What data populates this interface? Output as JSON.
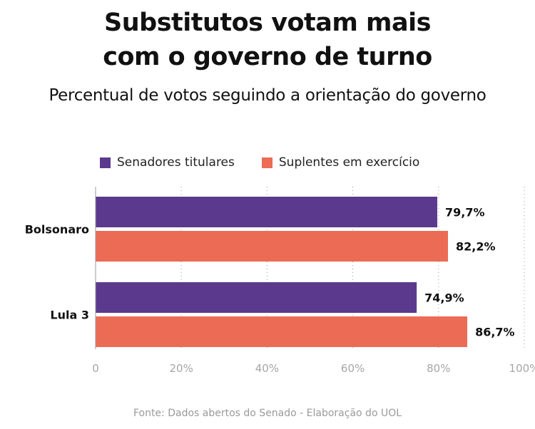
{
  "title_lines": [
    "Substitutos votam mais",
    "com o governo de turno"
  ],
  "subtitle": "Percentual de votos seguindo a orientação do governo",
  "source": "Fonte: Dados abertos do Senado - Elaboração do UOL",
  "chart_data": {
    "type": "bar",
    "orientation": "horizontal",
    "title": "Substitutos votam mais com o governo de turno",
    "subtitle": "Percentual de votos seguindo a orientação do governo",
    "categories": [
      "Bolsonaro",
      "Lula 3"
    ],
    "series": [
      {
        "name": "Senadores titulares",
        "color": "#5b3a8e",
        "values": [
          79.7,
          74.9
        ],
        "labels": [
          "79,7%",
          "74,9%"
        ]
      },
      {
        "name": "Suplentes em exercício",
        "color": "#ec6b55",
        "values": [
          82.2,
          86.7
        ],
        "labels": [
          "82,2%",
          "86,7%"
        ]
      }
    ],
    "xlim": [
      0,
      100
    ],
    "xticks": [
      0,
      20,
      40,
      60,
      80,
      100
    ],
    "xtick_labels": [
      "0",
      "20%",
      "40%",
      "60%",
      "80%",
      "100%"
    ],
    "grid": "vertical dotted",
    "legend_position": "top",
    "xlabel": "",
    "ylabel": ""
  }
}
